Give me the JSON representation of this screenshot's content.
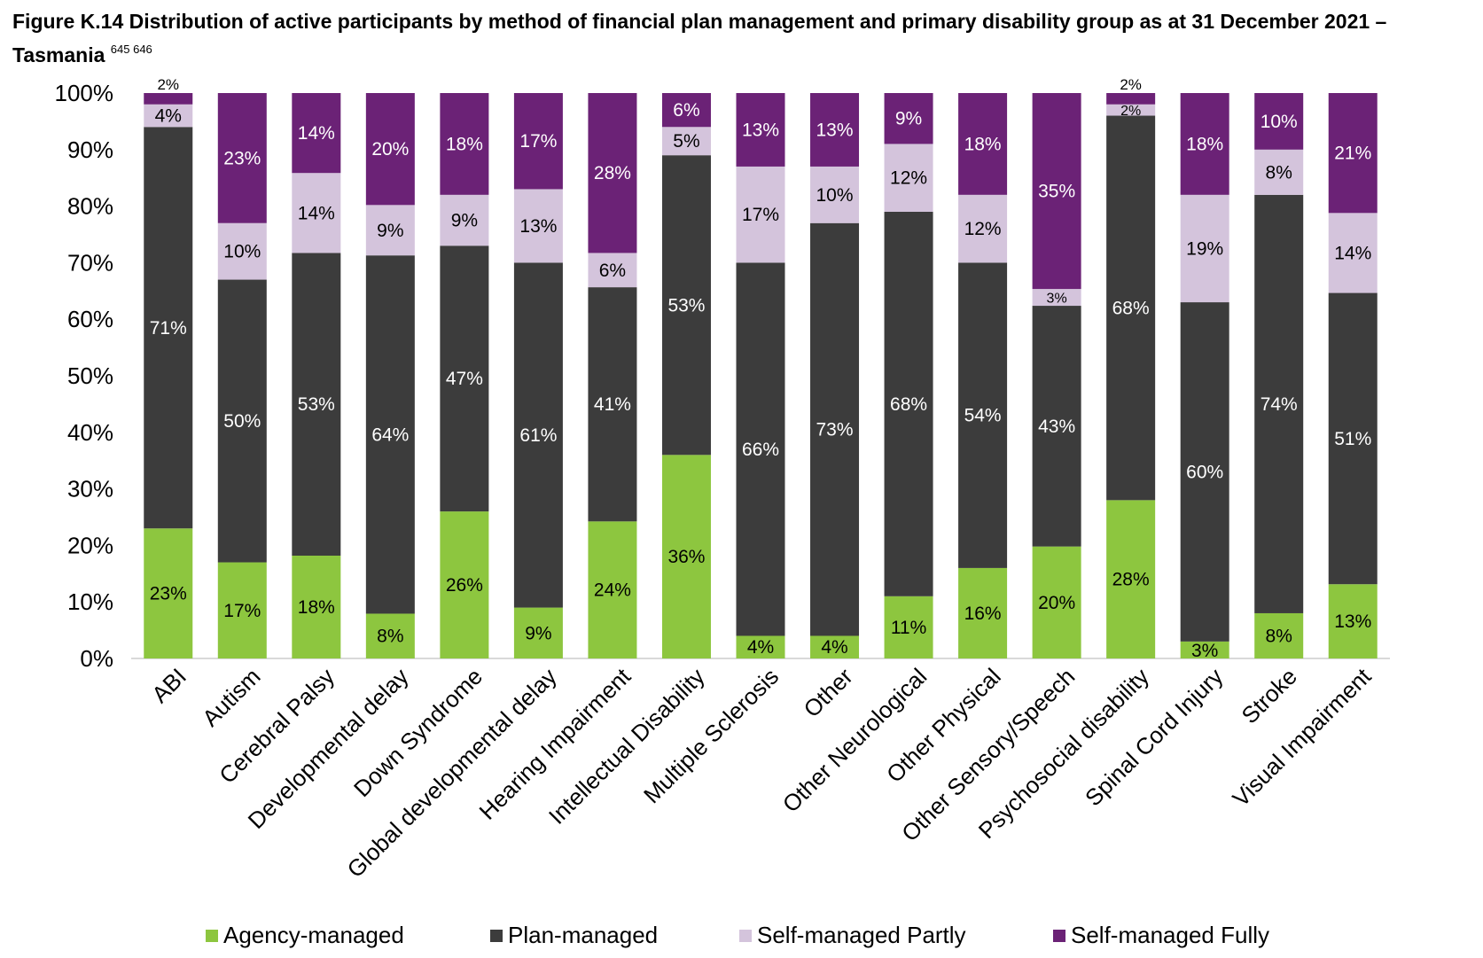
{
  "figure": {
    "title": "Figure K.14 Distribution of active participants by method of financial plan management and primary disability group as at 31 December 2021 – Tasmania",
    "footnote_refs": "645 646"
  },
  "chart_data": {
    "type": "bar",
    "stacked": true,
    "percent": true,
    "categories": [
      "ABI",
      "Autism",
      "Cerebral Palsy",
      "Developmental delay",
      "Down Syndrome",
      "Global developmental delay",
      "Hearing Impairment",
      "Intellectual Disability",
      "Multiple Sclerosis",
      "Other",
      "Other Neurological",
      "Other Physical",
      "Other Sensory/Speech",
      "Psychosocial disability",
      "Spinal Cord Injury",
      "Stroke",
      "Visual Impairment"
    ],
    "series": [
      {
        "name": "Agency-managed",
        "color": "#8dc63f",
        "values": [
          23,
          17,
          18,
          8,
          26,
          9,
          24,
          36,
          4,
          4,
          11,
          16,
          20,
          28,
          3,
          8,
          13
        ]
      },
      {
        "name": "Plan-managed",
        "color": "#3c3c3c",
        "values": [
          71,
          50,
          53,
          64,
          47,
          61,
          41,
          53,
          66,
          73,
          68,
          54,
          43,
          68,
          60,
          74,
          51
        ]
      },
      {
        "name": "Self-managed Partly",
        "color": "#d4c4dc",
        "values": [
          4,
          10,
          14,
          9,
          9,
          13,
          6,
          5,
          17,
          10,
          12,
          12,
          3,
          2,
          19,
          8,
          14
        ]
      },
      {
        "name": "Self-managed Fully",
        "color": "#6b2276",
        "values": [
          2,
          23,
          14,
          20,
          18,
          17,
          28,
          6,
          13,
          13,
          9,
          18,
          35,
          2,
          18,
          10,
          21
        ]
      }
    ],
    "ylim": [
      0,
      100
    ],
    "yticks": [
      "0%",
      "10%",
      "20%",
      "30%",
      "40%",
      "50%",
      "60%",
      "70%",
      "80%",
      "90%",
      "100%"
    ],
    "legend_position": "bottom"
  }
}
